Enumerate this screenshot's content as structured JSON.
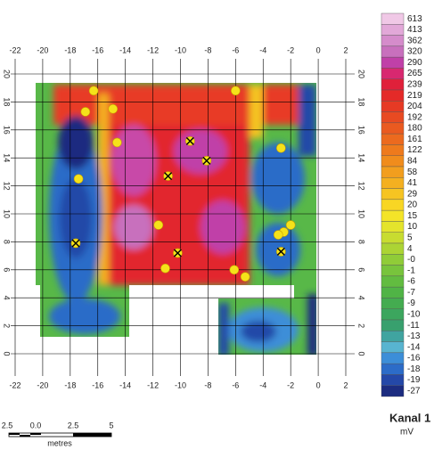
{
  "map": {
    "xlim": [
      -22,
      2
    ],
    "ylim": [
      0,
      20
    ],
    "xticks": [
      -22,
      -20,
      -18,
      -16,
      -14,
      -12,
      -10,
      -8,
      -6,
      -4,
      -2,
      0,
      2
    ],
    "yticks": [
      0,
      2,
      4,
      6,
      8,
      10,
      12,
      14,
      16,
      18,
      20
    ],
    "markers": [
      {
        "x": -16.3,
        "y": 18.8,
        "crossed": false
      },
      {
        "x": -16.9,
        "y": 17.3,
        "crossed": false
      },
      {
        "x": -14.9,
        "y": 17.5,
        "crossed": false
      },
      {
        "x": -14.6,
        "y": 15.1,
        "crossed": false
      },
      {
        "x": -6.0,
        "y": 18.8,
        "crossed": false
      },
      {
        "x": -2.7,
        "y": 14.7,
        "crossed": false
      },
      {
        "x": -17.4,
        "y": 12.5,
        "crossed": false
      },
      {
        "x": -11.6,
        "y": 9.2,
        "crossed": false
      },
      {
        "x": -11.1,
        "y": 6.1,
        "crossed": false
      },
      {
        "x": -6.1,
        "y": 6.0,
        "crossed": false
      },
      {
        "x": -5.3,
        "y": 5.5,
        "crossed": false
      },
      {
        "x": -2.5,
        "y": 8.7,
        "crossed": false
      },
      {
        "x": -2.9,
        "y": 8.5,
        "crossed": false
      },
      {
        "x": -2.0,
        "y": 9.2,
        "crossed": false
      },
      {
        "x": -9.3,
        "y": 15.2,
        "crossed": true
      },
      {
        "x": -8.1,
        "y": 13.8,
        "crossed": true
      },
      {
        "x": -10.9,
        "y": 12.7,
        "crossed": true
      },
      {
        "x": -17.6,
        "y": 7.9,
        "crossed": true
      },
      {
        "x": -10.2,
        "y": 7.2,
        "crossed": true
      },
      {
        "x": -2.7,
        "y": 7.3,
        "crossed": true
      }
    ]
  },
  "legend": {
    "title": "Kanal 1",
    "unit": "mV",
    "labels": [
      "613",
      "413",
      "362",
      "320",
      "290",
      "265",
      "239",
      "219",
      "204",
      "192",
      "180",
      "161",
      "122",
      "84",
      "58",
      "41",
      "29",
      "20",
      "15",
      "10",
      "5",
      "4",
      "-0",
      "-1",
      "-6",
      "-7",
      "-9",
      "-10",
      "-11",
      "-13",
      "-14",
      "-16",
      "-18",
      "-19",
      "-27"
    ],
    "colors": [
      "#f0c8e6",
      "#e2a8d8",
      "#d58ccb",
      "#c870bd",
      "#c040a8",
      "#d82870",
      "#e0203a",
      "#e42a28",
      "#e63a24",
      "#e84a22",
      "#ea5a20",
      "#ec6a1e",
      "#ee7a1c",
      "#f08c1c",
      "#f29e1e",
      "#f4b020",
      "#f6c422",
      "#f8d624",
      "#f4e428",
      "#e4e42c",
      "#c8dc30",
      "#acd434",
      "#90cc38",
      "#78c43c",
      "#62bc40",
      "#50b446",
      "#44ac50",
      "#3ca65e",
      "#38a06e",
      "#40a4a0",
      "#58b4d0",
      "#3c8ed8",
      "#2c6cc8",
      "#2448a8",
      "#1c2c80"
    ]
  },
  "scale_bar": {
    "labels": [
      "2.5",
      "0.0",
      "2.5",
      "5"
    ],
    "unit": "metres"
  }
}
